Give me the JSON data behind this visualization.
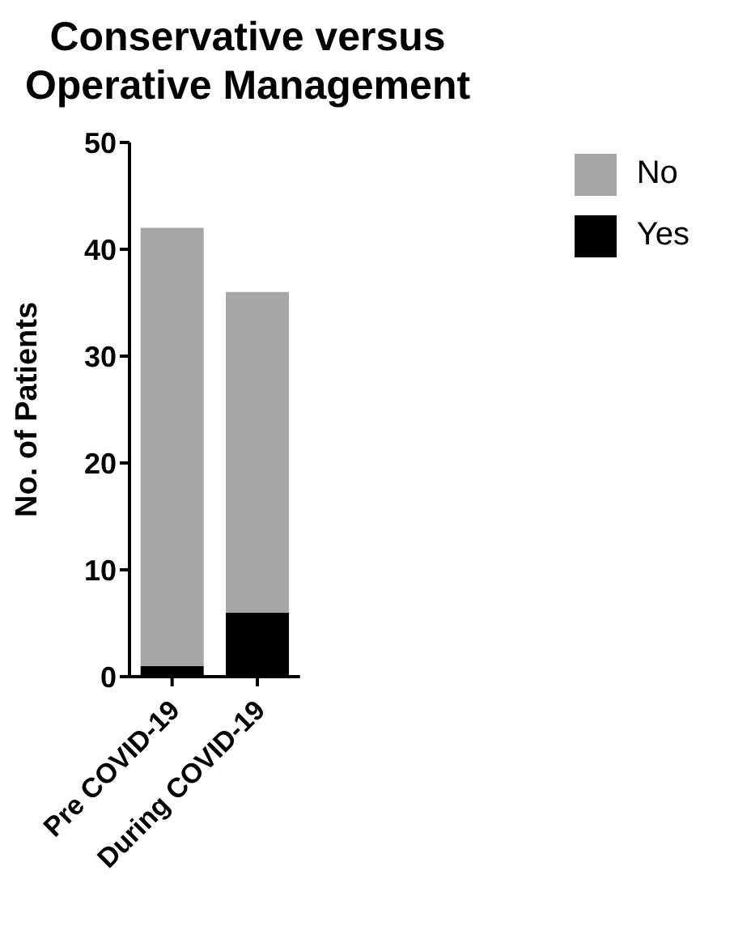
{
  "chart_data": {
    "type": "bar",
    "title": "Conservative versus Operative Management",
    "ylabel": "No. of Patients",
    "categories": [
      "Pre COVID-19",
      "During COVID-19"
    ],
    "stacked": true,
    "series": [
      {
        "name": "Yes",
        "color": "#000000",
        "values": [
          1,
          6
        ]
      },
      {
        "name": "No",
        "color": "#a6a6a6",
        "values": [
          41,
          30
        ]
      }
    ],
    "ylim": [
      0,
      50
    ],
    "yticks": [
      0,
      10,
      20,
      30,
      40,
      50
    ],
    "grid": false,
    "legend": "top right"
  }
}
